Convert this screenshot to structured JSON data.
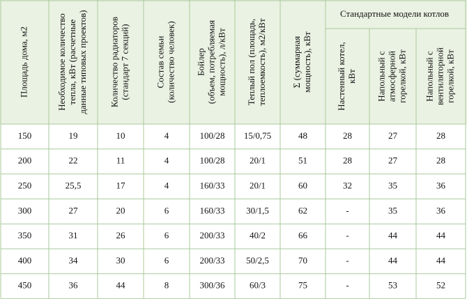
{
  "table": {
    "group_header": "Стандартные модели котлов",
    "headers": [
      [
        "Площадь дома, м2"
      ],
      [
        "Необходимое количество",
        "тепла, кВт (расчетные",
        "данные типовых проектов)"
      ],
      [
        "Количество радиаторов",
        "(стандарт 7 секций)"
      ],
      [
        "Состав семьи",
        "(количество человек)"
      ],
      [
        "Бойлер",
        "(объем, потребляемая",
        "мощность), л/кВт"
      ],
      [
        "Теплый пол (площадь,",
        "теплоемкость), м2/кВт"
      ],
      [
        "Σ (суммарная",
        "мощность), кВт"
      ],
      [
        "Настенный котел,",
        "кВт"
      ],
      [
        "Напольный с",
        "атмосферной",
        "горелкой, кВт"
      ],
      [
        "Напольный с",
        "вентиляторной",
        "горелкой, кВт"
      ]
    ],
    "rows": [
      [
        "150",
        "19",
        "10",
        "4",
        "100/28",
        "15/0,75",
        "48",
        "28",
        "27",
        "28"
      ],
      [
        "200",
        "22",
        "11",
        "4",
        "100/28",
        "20/1",
        "51",
        "28",
        "27",
        "28"
      ],
      [
        "250",
        "25,5",
        "17",
        "4",
        "160/33",
        "20/1",
        "60",
        "32",
        "35",
        "36"
      ],
      [
        "300",
        "27",
        "20",
        "6",
        "160/33",
        "30/1,5",
        "62",
        "-",
        "35",
        "36"
      ],
      [
        "350",
        "31",
        "26",
        "6",
        "200/33",
        "40/2",
        "66",
        "-",
        "44",
        "44"
      ],
      [
        "400",
        "34",
        "30",
        "6",
        "200/33",
        "50/2,5",
        "70",
        "-",
        "44",
        "44"
      ],
      [
        "450",
        "36",
        "44",
        "8",
        "300/36",
        "60/3",
        "75",
        "-",
        "53",
        "52"
      ]
    ]
  }
}
